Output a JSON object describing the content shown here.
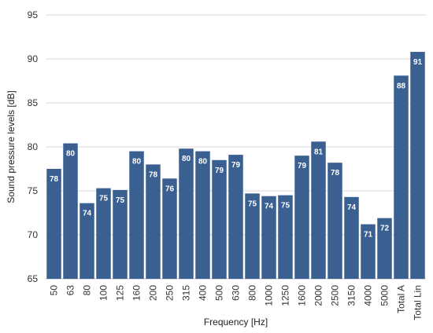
{
  "chart_data": {
    "type": "bar",
    "xlabel": "Frequency [Hz]",
    "ylabel": "Sound pressure levels [dB]",
    "ylim": [
      65,
      95
    ],
    "yticks": [
      65,
      70,
      75,
      80,
      85,
      90,
      95
    ],
    "grid": true,
    "bar_color": "#3a5f91",
    "categories": [
      "50",
      "63",
      "80",
      "100",
      "125",
      "160",
      "200",
      "250",
      "315",
      "400",
      "500",
      "630",
      "800",
      "1000",
      "1250",
      "1600",
      "2000",
      "2500",
      "3150",
      "4000",
      "5000",
      "Total A",
      "Total Lin"
    ],
    "values": [
      77.5,
      80.4,
      73.6,
      75.3,
      75.1,
      79.5,
      78.0,
      76.4,
      79.8,
      79.5,
      78.5,
      79.1,
      74.7,
      74.4,
      74.5,
      79.0,
      80.6,
      78.2,
      74.3,
      71.2,
      71.9,
      88.1,
      90.8
    ],
    "data_labels": [
      "78",
      "80",
      "74",
      "75",
      "75",
      "80",
      "78",
      "76",
      "80",
      "80",
      "79",
      "79",
      "75",
      "74",
      "75",
      "79",
      "81",
      "78",
      "74",
      "71",
      "72",
      "88",
      "91"
    ]
  }
}
